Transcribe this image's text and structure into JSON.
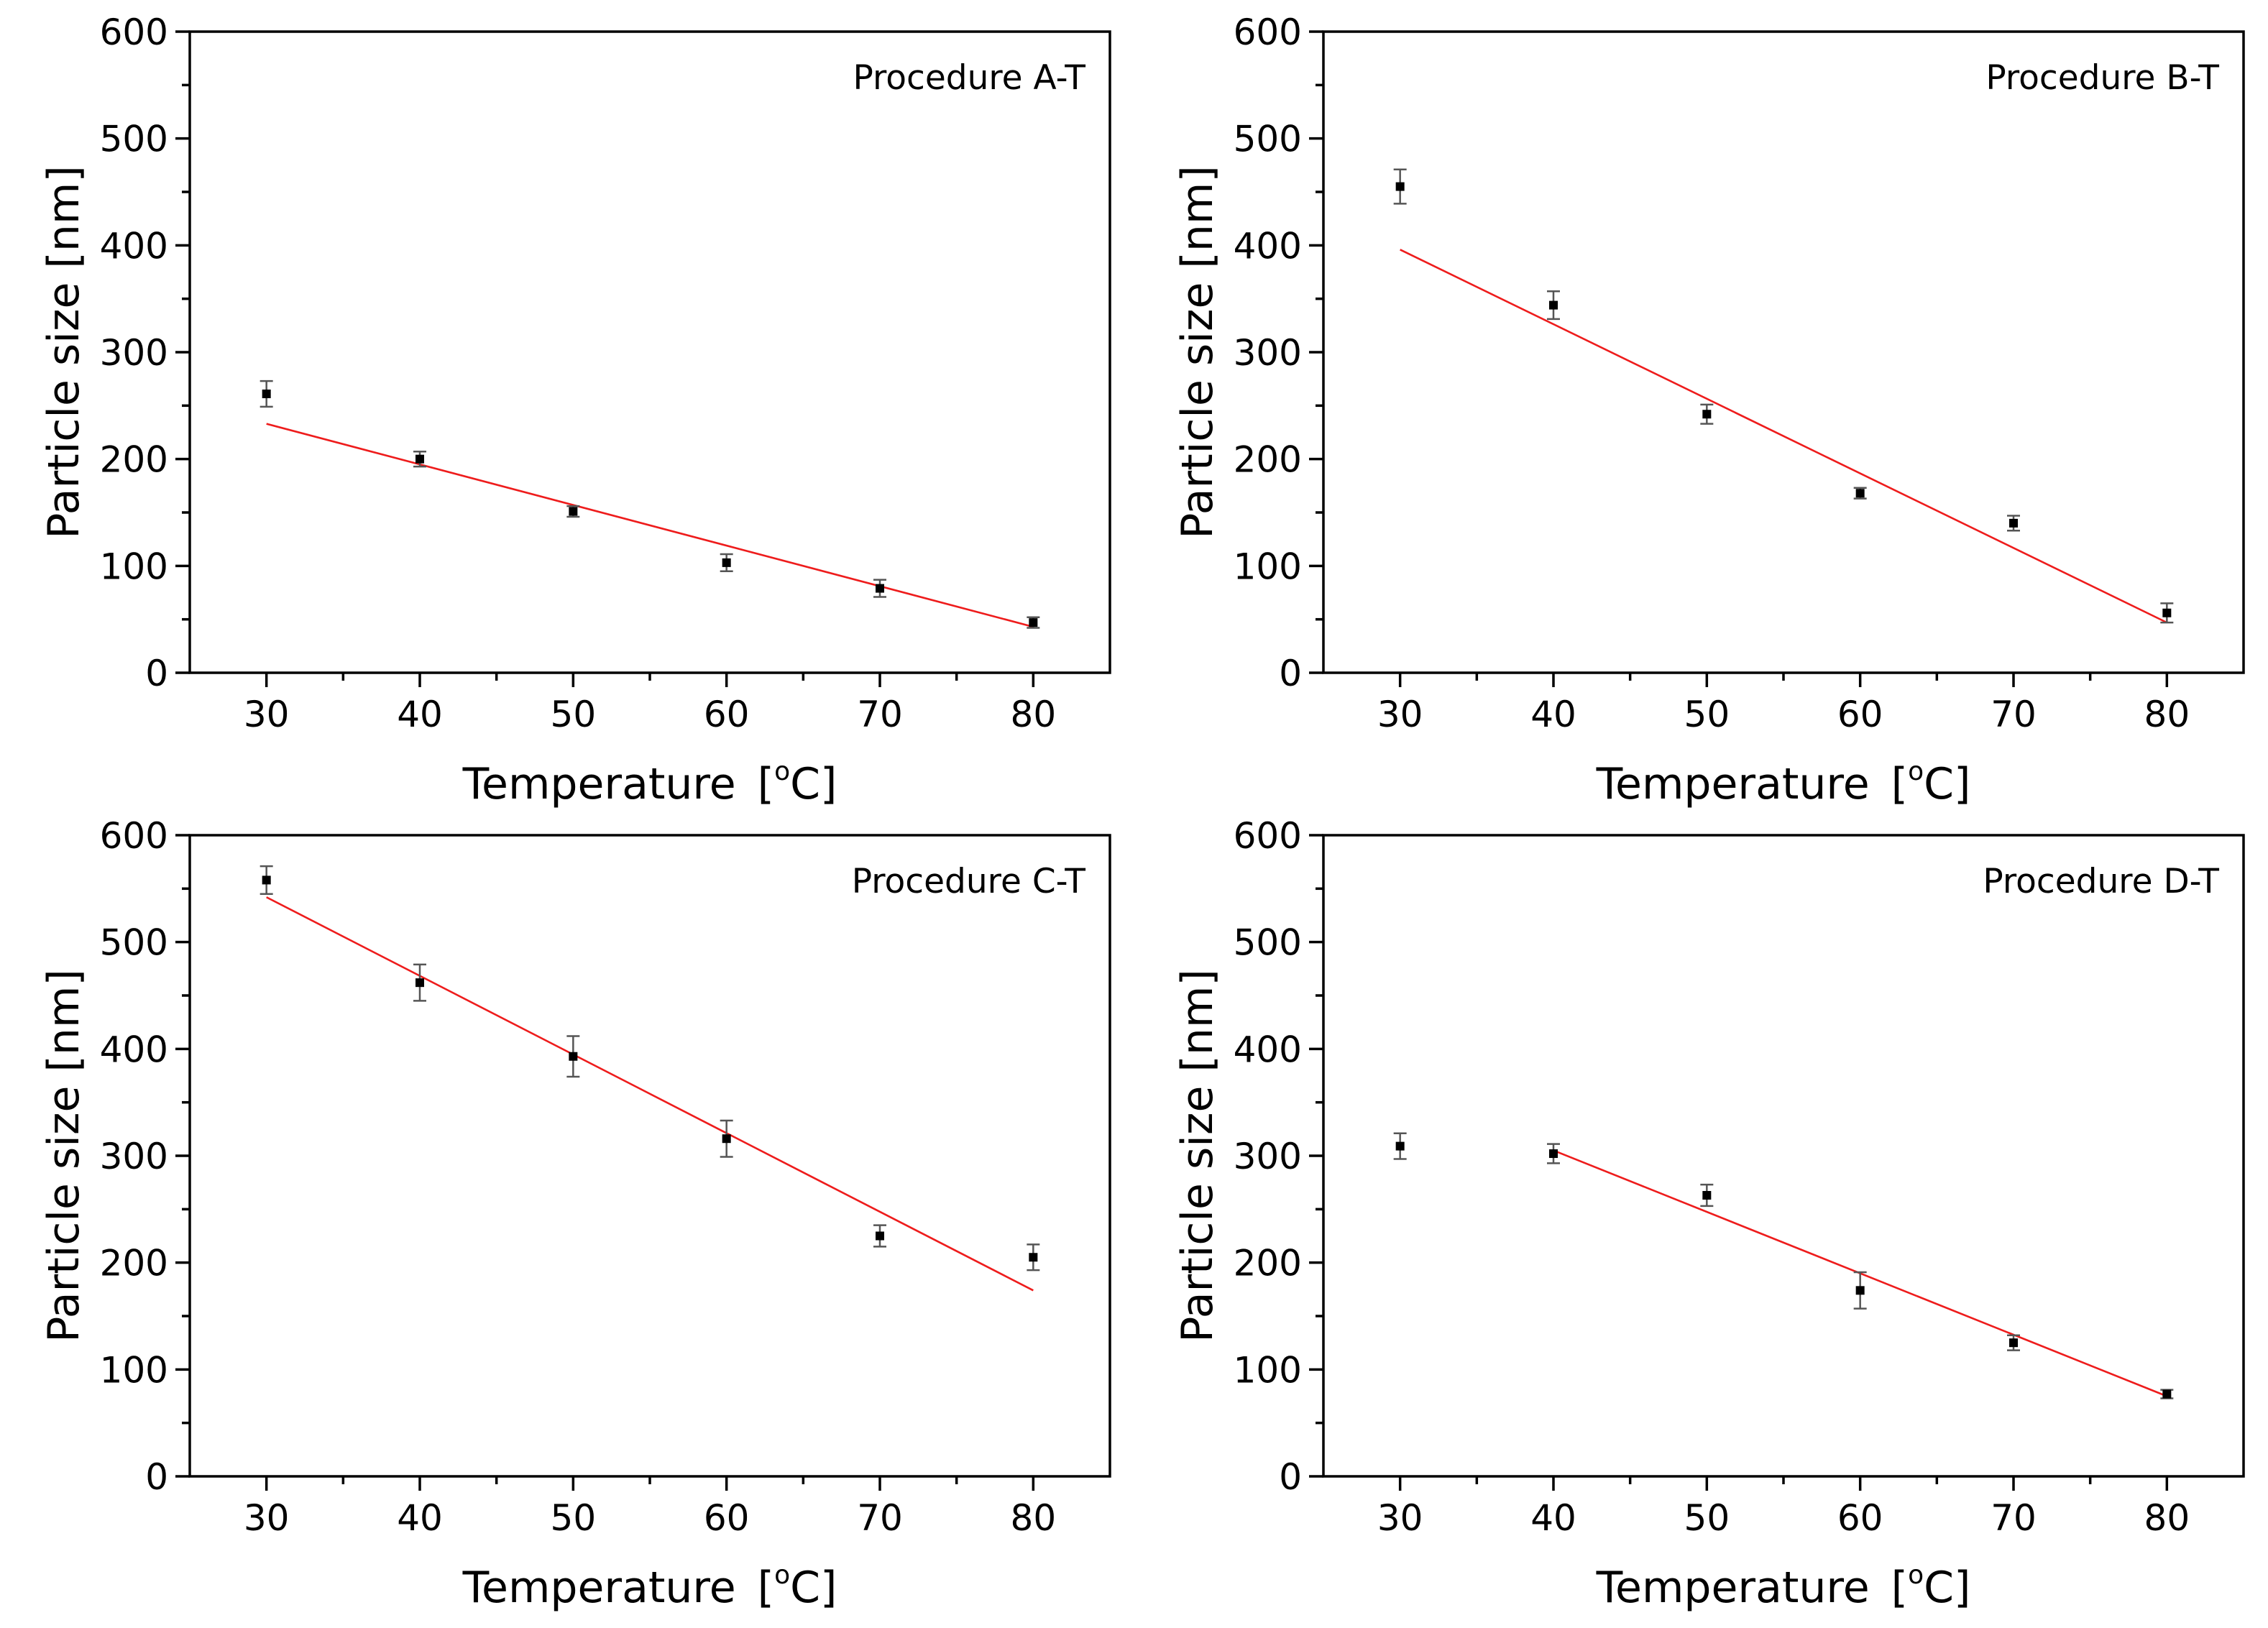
{
  "figure": {
    "colors": {
      "data_point": "#000000",
      "fit_line": "#ee1c1c",
      "error_bar": "#555555",
      "axes": "#000000"
    }
  },
  "chart_data": [
    {
      "type": "scatter",
      "title": "Procedure A-T",
      "xlabel": "Temperature",
      "xlabel_unit_open": "[",
      "xlabel_unit_sup": "o",
      "xlabel_unit_rest": "C]",
      "ylabel": "Particle size [nm]",
      "xlim": [
        25,
        85
      ],
      "ylim": [
        0,
        600
      ],
      "xticks": [
        "30",
        "40",
        "50",
        "60",
        "70",
        "80"
      ],
      "yticks": [
        "0",
        "100",
        "200",
        "300",
        "400",
        "500",
        "600"
      ],
      "grid": false,
      "points": [
        {
          "x": 30,
          "y": 261,
          "err": 12
        },
        {
          "x": 40,
          "y": 200,
          "err": 7
        },
        {
          "x": 50,
          "y": 151,
          "err": 5
        },
        {
          "x": 60,
          "y": 103,
          "err": 8
        },
        {
          "x": 70,
          "y": 79,
          "err": 8
        },
        {
          "x": 80,
          "y": 47,
          "err": 5
        }
      ],
      "fit": {
        "x": [
          30,
          80
        ],
        "y": [
          233,
          43
        ]
      }
    },
    {
      "type": "scatter",
      "title": "Procedure B-T",
      "xlabel": "Temperature",
      "xlabel_unit_open": "[",
      "xlabel_unit_sup": "o",
      "xlabel_unit_rest": "C]",
      "ylabel": "Particle size [nm]",
      "xlim": [
        25,
        85
      ],
      "ylim": [
        0,
        600
      ],
      "xticks": [
        "30",
        "40",
        "50",
        "60",
        "70",
        "80"
      ],
      "yticks": [
        "0",
        "100",
        "200",
        "300",
        "400",
        "500",
        "600"
      ],
      "grid": false,
      "points": [
        {
          "x": 30,
          "y": 455,
          "err": 16
        },
        {
          "x": 40,
          "y": 344,
          "err": 13
        },
        {
          "x": 50,
          "y": 242,
          "err": 9
        },
        {
          "x": 60,
          "y": 168,
          "err": 5
        },
        {
          "x": 70,
          "y": 140,
          "err": 7
        },
        {
          "x": 80,
          "y": 56,
          "err": 9
        }
      ],
      "fit": {
        "x": [
          30,
          80
        ],
        "y": [
          396,
          47
        ]
      }
    },
    {
      "type": "scatter",
      "title": "Procedure C-T",
      "xlabel": "Temperature",
      "xlabel_unit_open": "[",
      "xlabel_unit_sup": "o",
      "xlabel_unit_rest": "C]",
      "ylabel": "Particle size [nm]",
      "xlim": [
        25,
        85
      ],
      "ylim": [
        0,
        600
      ],
      "xticks": [
        "30",
        "40",
        "50",
        "60",
        "70",
        "80"
      ],
      "yticks": [
        "0",
        "100",
        "200",
        "300",
        "400",
        "500",
        "600"
      ],
      "grid": false,
      "points": [
        {
          "x": 30,
          "y": 558,
          "err": 13
        },
        {
          "x": 40,
          "y": 462,
          "err": 17
        },
        {
          "x": 50,
          "y": 393,
          "err": 19
        },
        {
          "x": 60,
          "y": 316,
          "err": 17
        },
        {
          "x": 70,
          "y": 225,
          "err": 10
        },
        {
          "x": 80,
          "y": 205,
          "err": 12
        }
      ],
      "fit": {
        "x": [
          30,
          80
        ],
        "y": [
          542,
          174
        ]
      }
    },
    {
      "type": "scatter",
      "title": "Procedure D-T",
      "xlabel": "Temperature",
      "xlabel_unit_open": "[",
      "xlabel_unit_sup": "o",
      "xlabel_unit_rest": "C]",
      "ylabel": "Particle size [nm]",
      "xlim": [
        25,
        85
      ],
      "ylim": [
        0,
        600
      ],
      "xticks": [
        "30",
        "40",
        "50",
        "60",
        "70",
        "80"
      ],
      "yticks": [
        "0",
        "100",
        "200",
        "300",
        "400",
        "500",
        "600"
      ],
      "grid": false,
      "points": [
        {
          "x": 30,
          "y": 309,
          "err": 12
        },
        {
          "x": 40,
          "y": 302,
          "err": 9
        },
        {
          "x": 50,
          "y": 263,
          "err": 10
        },
        {
          "x": 60,
          "y": 174,
          "err": 17
        },
        {
          "x": 70,
          "y": 125,
          "err": 7
        },
        {
          "x": 80,
          "y": 77,
          "err": 4
        }
      ],
      "fit": {
        "x": [
          40,
          80
        ],
        "y": [
          305,
          75
        ]
      }
    }
  ]
}
